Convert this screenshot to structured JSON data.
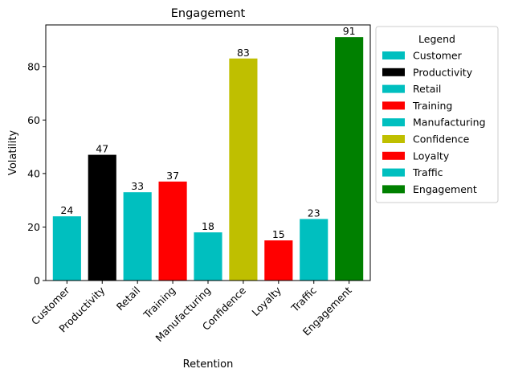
{
  "chart_data": {
    "type": "bar",
    "title": "Engagement",
    "xlabel": "Retention",
    "ylabel": "Volatility",
    "categories": [
      "Customer",
      "Productivity",
      "Retail",
      "Training",
      "Manufacturing",
      "Confidence",
      "Loyalty",
      "Traffic",
      "Engagement"
    ],
    "values": [
      24,
      47,
      33,
      37,
      18,
      83,
      15,
      23,
      91
    ],
    "colors": [
      "#00bfbf",
      "#000000",
      "#00bfbf",
      "#ff0000",
      "#00bfbf",
      "#bfbf00",
      "#ff0000",
      "#00bfbf",
      "#008000"
    ],
    "ylim": [
      0,
      95.55
    ],
    "yticks": [
      0,
      20,
      40,
      60,
      80
    ],
    "grid": false,
    "legend": {
      "title": "Legend",
      "placement": "outside-right-top",
      "entries": [
        "Customer",
        "Productivity",
        "Retail",
        "Training",
        "Manufacturing",
        "Confidence",
        "Loyalty",
        "Traffic",
        "Engagement"
      ]
    }
  }
}
